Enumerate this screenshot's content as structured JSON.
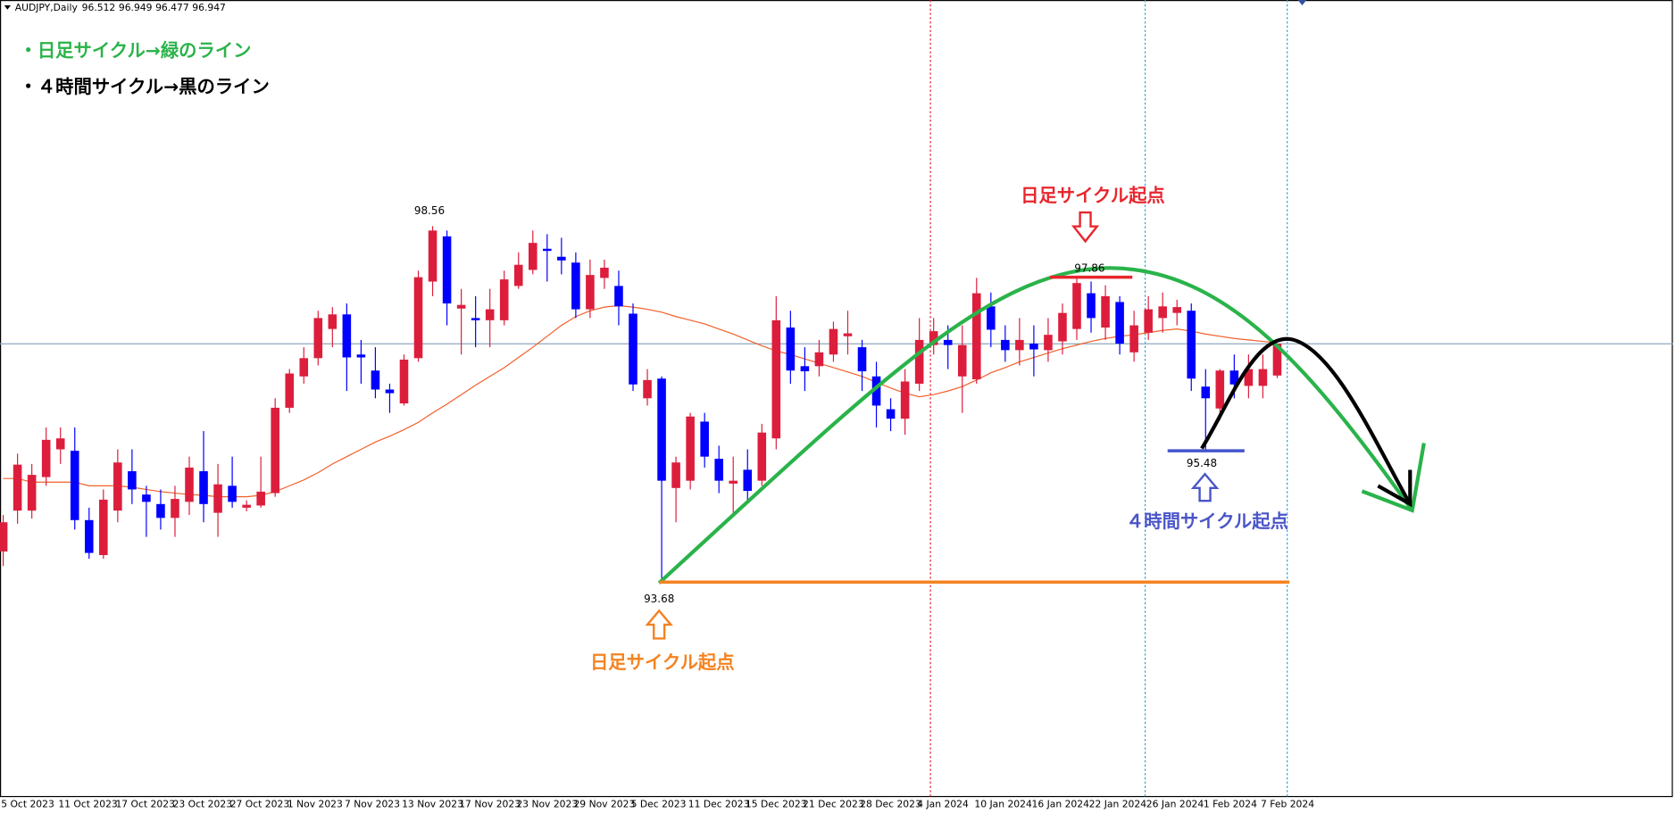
{
  "chart_data": {
    "type": "candlestick",
    "title": "AUDJPY,Daily",
    "categories": [
      "5 Oct 2023",
      null,
      null,
      null,
      "11 Oct 2023",
      null,
      null,
      null,
      "17 Oct 2023",
      null,
      null,
      null,
      "23 Oct 2023",
      null,
      null,
      null,
      "27 Oct 2023",
      null,
      null,
      null,
      "1 Nov 2023",
      null,
      null,
      null,
      "7 Nov 2023",
      null,
      null,
      null,
      "13 Nov 2023",
      null,
      null,
      null,
      "17 Nov 2023",
      null,
      null,
      null,
      "23 Nov 2023",
      null,
      null,
      null,
      "29 Nov 2023",
      null,
      null,
      null,
      "5 Dec 2023",
      null,
      null,
      null,
      "11 Dec 2023",
      null,
      null,
      null,
      "15 Dec 2023",
      null,
      null,
      null,
      "21 Dec 2023",
      null,
      null,
      null,
      "28 Dec 2023",
      null,
      null,
      null,
      "4 Jan 2024",
      null,
      null,
      null,
      "10 Jan 2024",
      null,
      null,
      null,
      "16 Jan 2024",
      null,
      null,
      null,
      "22 Jan 2024",
      null,
      null,
      null,
      "26 Jan 2024",
      null,
      null,
      null,
      "1 Feb 2024",
      null,
      null,
      null,
      "7 Feb 2024",
      null
    ],
    "open": [
      94.1,
      94.66,
      94.66,
      95.12,
      95.5,
      95.48,
      94.53,
      94.05,
      94.66,
      95.2,
      94.88,
      94.75,
      94.56,
      94.78,
      95.2,
      94.63,
      95.0,
      94.7,
      94.73,
      94.9,
      96.07,
      96.5,
      96.75,
      97.15,
      97.35,
      96.8,
      96.58,
      96.32,
      96.13,
      96.75,
      97.8,
      98.42,
      97.43,
      97.3,
      97.27,
      97.27,
      97.74,
      97.96,
      98.25,
      98.14,
      98.06,
      97.42,
      97.85,
      97.74,
      97.36,
      96.2,
      96.47,
      94.97,
      95.07,
      95.88,
      95.37,
      95.03,
      95.22,
      95.07,
      95.65,
      97.17,
      96.64,
      96.64,
      96.8,
      97.05,
      96.9,
      96.5,
      96.05,
      95.92,
      96.4,
      96.93,
      97.0,
      96.5,
      96.46,
      97.46,
      97.0,
      96.86,
      96.95,
      96.86,
      96.98,
      97.15,
      97.64,
      97.17,
      97.52,
      96.83,
      97.1,
      97.3,
      97.37,
      97.4,
      96.36,
      96.06,
      96.58,
      96.37,
      96.37,
      96.512
    ],
    "high": [
      94.6,
      95.44,
      95.3,
      95.8,
      95.8,
      95.8,
      94.7,
      94.95,
      95.5,
      95.5,
      95.0,
      94.95,
      95.0,
      95.4,
      95.75,
      95.3,
      95.4,
      94.8,
      95.4,
      96.2,
      96.6,
      96.9,
      97.4,
      97.45,
      97.5,
      97.0,
      96.9,
      96.4,
      96.8,
      97.95,
      98.56,
      98.5,
      97.7,
      97.6,
      97.7,
      97.95,
      98.2,
      98.5,
      98.45,
      98.4,
      98.2,
      98.1,
      98.1,
      97.95,
      97.5,
      96.6,
      96.5,
      95.4,
      96.0,
      96.0,
      95.55,
      95.4,
      95.5,
      95.85,
      97.6,
      97.4,
      96.9,
      97.0,
      97.25,
      97.4,
      97.0,
      96.7,
      96.2,
      96.6,
      97.3,
      97.3,
      97.2,
      97.2,
      97.85,
      97.65,
      97.2,
      97.3,
      97.2,
      97.3,
      97.5,
      97.86,
      97.8,
      97.75,
      97.6,
      97.4,
      97.6,
      97.65,
      97.55,
      97.5,
      96.6,
      96.6,
      96.8,
      96.8,
      96.8,
      96.949
    ],
    "low": [
      93.9,
      94.48,
      94.55,
      95.0,
      95.3,
      94.4,
      94.0,
      94.0,
      94.5,
      94.75,
      94.3,
      94.4,
      94.3,
      94.6,
      94.5,
      94.3,
      94.7,
      94.65,
      94.7,
      94.85,
      96.0,
      96.4,
      96.65,
      96.9,
      96.3,
      96.4,
      96.2,
      96.0,
      96.1,
      96.7,
      97.6,
      97.2,
      96.8,
      96.9,
      96.9,
      97.2,
      97.7,
      97.9,
      97.8,
      97.9,
      97.3,
      97.3,
      97.7,
      97.2,
      96.3,
      96.1,
      93.68,
      94.5,
      94.95,
      95.25,
      94.9,
      94.6,
      94.8,
      95.0,
      95.5,
      96.4,
      96.3,
      96.5,
      96.7,
      96.8,
      96.3,
      95.8,
      95.75,
      95.7,
      96.3,
      96.8,
      96.6,
      96.0,
      96.4,
      96.9,
      96.7,
      96.65,
      96.5,
      96.7,
      96.8,
      97.0,
      97.1,
      97.0,
      96.8,
      96.7,
      97.0,
      97.1,
      97.2,
      96.3,
      95.48,
      95.9,
      96.2,
      96.2,
      96.2,
      96.477
    ],
    "close": [
      94.5,
      95.29,
      95.15,
      95.63,
      95.65,
      94.53,
      94.08,
      94.81,
      95.32,
      94.95,
      94.78,
      94.56,
      94.82,
      95.25,
      94.75,
      95.02,
      94.78,
      94.74,
      94.92,
      96.07,
      96.54,
      96.75,
      97.3,
      97.35,
      96.76,
      96.76,
      96.32,
      96.27,
      96.73,
      97.86,
      98.5,
      97.5,
      97.48,
      97.27,
      97.42,
      97.83,
      98.03,
      98.33,
      98.22,
      98.09,
      97.42,
      97.89,
      97.99,
      97.46,
      96.39,
      96.45,
      95.07,
      95.32,
      95.95,
      95.4,
      95.07,
      95.07,
      94.93,
      95.73,
      97.27,
      96.58,
      96.57,
      96.83,
      97.15,
      97.09,
      96.57,
      96.1,
      95.92,
      96.43,
      97.0,
      97.12,
      96.93,
      96.93,
      97.64,
      97.14,
      96.86,
      97.0,
      96.87,
      97.07,
      97.37,
      97.78,
      97.3,
      97.6,
      96.95,
      97.2,
      97.42,
      97.46,
      97.45,
      96.47,
      96.2,
      96.58,
      96.39,
      96.6,
      96.6,
      96.947
    ],
    "up_color": "#dc1e3c",
    "down_color": "#0000ff",
    "ma": {
      "color": "#f0602a",
      "values": [
        95.1,
        95.1,
        95.05,
        95.05,
        95.05,
        95.05,
        95.0,
        95.0,
        95.0,
        94.98,
        94.95,
        94.92,
        94.9,
        94.88,
        94.87,
        94.85,
        94.85,
        94.85,
        94.87,
        94.92,
        95.0,
        95.08,
        95.18,
        95.3,
        95.4,
        95.5,
        95.6,
        95.68,
        95.77,
        95.87,
        96.0,
        96.12,
        96.25,
        96.38,
        96.5,
        96.62,
        96.76,
        96.9,
        97.05,
        97.2,
        97.32,
        97.4,
        97.45,
        97.47,
        97.45,
        97.42,
        97.38,
        97.32,
        97.27,
        97.22,
        97.15,
        97.08,
        97.0,
        96.92,
        96.85,
        96.8,
        96.74,
        96.68,
        96.62,
        96.56,
        96.5,
        96.42,
        96.34,
        96.27,
        96.22,
        96.25,
        96.3,
        96.36,
        96.45,
        96.55,
        96.62,
        96.7,
        96.76,
        96.82,
        96.88,
        96.93,
        96.98,
        97.02,
        97.05,
        97.07,
        97.1,
        97.13,
        97.15,
        97.12,
        97.08,
        97.05,
        97.02,
        97.0,
        96.98,
        96.96
      ]
    },
    "bid_line_color": "#8fa8bd",
    "ylim": [
      90.74,
      101.66
    ],
    "price_labels": [
      {
        "value": 98.56
      },
      {
        "value": 97.86,
        "color": "#e8262e"
      },
      {
        "value": 93.68,
        "color": "#f58220"
      },
      {
        "value": 95.48,
        "color": "#4455cc"
      }
    ],
    "annotations": [
      {
        "text": "・日足サイクル→緑のライン",
        "color": "#2ab34a"
      },
      {
        "text": "・４時間サイクル→黒のライン",
        "color": "#000000"
      },
      {
        "text": "日足サイクル起点",
        "color": "#e8262e"
      },
      {
        "text": "日足サイクル起点",
        "color": "#f58220"
      },
      {
        "text": "４時間サイクル起点",
        "color": "#4a55c8"
      }
    ]
  }
}
